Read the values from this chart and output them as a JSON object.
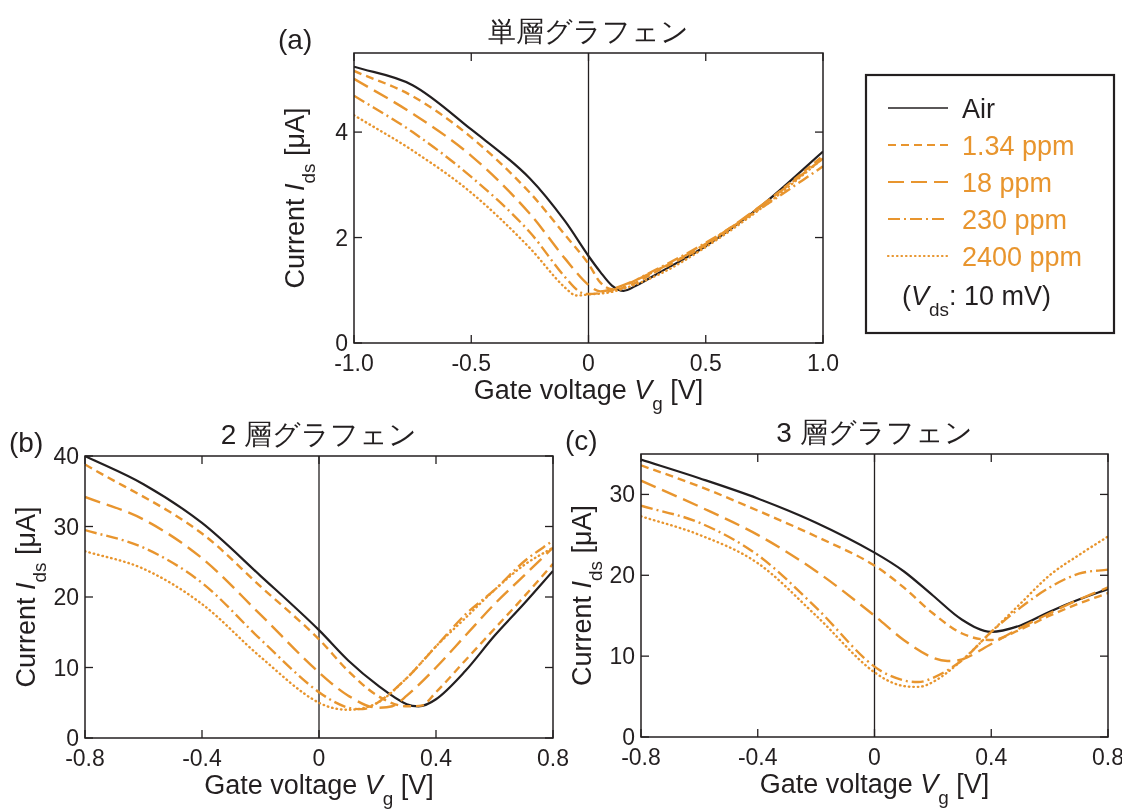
{
  "chart_data": [
    {
      "type": "line",
      "title": "単層グラフェン",
      "xlabel": "Gate voltage V$_{g}$ [V]",
      "ylabel": "Current I$_{ds}$ [μA]",
      "xlim": [
        -1,
        1
      ],
      "ylim": [
        0,
        5.5
      ],
      "xticks": [
        {
          "value": -1,
          "label": "-1.0"
        },
        -0.5,
        0,
        0.5,
        {
          "value": 1,
          "label": "1.0"
        }
      ],
      "yticks": [
        0,
        2,
        4
      ],
      "legend": "right",
      "annotations": [
        "(a)",
        "(V$_{ds}$: 10 mV)"
      ],
      "ref_lines": [
        {
          "axis": "x",
          "value": 0,
          "color": "#231f20"
        }
      ],
      "series": [
        {
          "name": "Air",
          "color": "#231f20",
          "line_style": "solid",
          "x": [
            -1,
            -0.75,
            -0.5,
            -0.25,
            -0.1,
            0,
            0.05,
            0.1,
            0.15,
            0.2,
            0.3,
            0.5,
            0.75,
            1
          ],
          "values": [
            5.24,
            4.89,
            4.05,
            3.12,
            2.31,
            1.65,
            1.35,
            1.09,
            0.99,
            1.08,
            1.33,
            1.84,
            2.65,
            3.63
          ]
        },
        {
          "name": "1.34 ppm",
          "color": "#e8952e",
          "line_style": "dashed",
          "x": [
            -1,
            -0.75,
            -0.5,
            -0.25,
            -0.1,
            0,
            0.05,
            0.1,
            0.15,
            0.3,
            0.5,
            0.75,
            1
          ],
          "values": [
            5.16,
            4.68,
            3.9,
            2.85,
            2.05,
            1.5,
            1.15,
            1.02,
            1.05,
            1.38,
            1.86,
            2.65,
            3.55
          ]
        },
        {
          "name": "18 ppm",
          "color": "#e8952e",
          "line_style": "longdash",
          "x": [
            -1,
            -0.75,
            -0.5,
            -0.25,
            -0.1,
            0,
            0.05,
            0.1,
            0.3,
            0.5,
            0.75,
            1
          ],
          "values": [
            5.01,
            4.35,
            3.55,
            2.45,
            1.6,
            1.1,
            0.98,
            1.02,
            1.4,
            1.88,
            2.65,
            3.5
          ]
        },
        {
          "name": "230 ppm",
          "color": "#e8952e",
          "line_style": "dashdot",
          "x": [
            -1,
            -0.75,
            -0.5,
            -0.25,
            -0.1,
            -0.03,
            0,
            0.1,
            0.3,
            0.5,
            0.75,
            1
          ],
          "values": [
            4.69,
            4.0,
            3.15,
            2.1,
            1.25,
            0.95,
            0.93,
            1.0,
            1.42,
            1.9,
            2.6,
            3.35
          ]
        },
        {
          "name": "2400 ppm",
          "color": "#e8952e",
          "line_style": "dotted",
          "x": [
            -1,
            -0.75,
            -0.5,
            -0.25,
            -0.1,
            -0.05,
            0,
            0.1,
            0.3,
            0.5,
            0.75,
            1
          ],
          "values": [
            4.32,
            3.65,
            2.85,
            1.8,
            1.05,
            0.9,
            0.92,
            0.97,
            1.3,
            1.82,
            2.6,
            3.5
          ]
        }
      ]
    },
    {
      "type": "line",
      "title": "2 層グラフェン",
      "xlabel": "Gate voltage V$_{g}$ [V]",
      "ylabel": "Current I$_{ds}$ [μA]",
      "xlim": [
        -0.8,
        0.8
      ],
      "ylim": [
        0,
        40
      ],
      "xticks": [
        -0.8,
        -0.4,
        0,
        0.4,
        0.8
      ],
      "yticks": [
        0,
        10,
        20,
        30,
        40
      ],
      "annotations": [
        "(b)"
      ],
      "ref_lines": [
        {
          "axis": "x",
          "value": 0,
          "color": "#231f20"
        }
      ],
      "series": [
        {
          "color": "#231f20",
          "line_style": "solid",
          "x": [
            -0.8,
            -0.6,
            -0.4,
            -0.2,
            0,
            0.1,
            0.2,
            0.3,
            0.34,
            0.4,
            0.5,
            0.6,
            0.7,
            0.8
          ],
          "values": [
            40,
            36,
            30.5,
            23,
            15.3,
            11,
            7.5,
            4.8,
            4.5,
            5.5,
            9.5,
            14.5,
            19,
            23.7
          ]
        },
        {
          "color": "#e8952e",
          "line_style": "dashed",
          "x": [
            -0.8,
            -0.4,
            -0.2,
            0,
            0.1,
            0.2,
            0.3,
            0.35,
            0.4,
            0.5,
            0.6,
            0.7,
            0.8
          ],
          "values": [
            38.8,
            29,
            21.5,
            14,
            9.5,
            6,
            4.5,
            4.6,
            6.5,
            11,
            15.5,
            20,
            24.7
          ]
        },
        {
          "color": "#e8952e",
          "line_style": "longdash",
          "x": [
            -0.8,
            -0.6,
            -0.4,
            -0.2,
            0,
            0.1,
            0.2,
            0.25,
            0.3,
            0.4,
            0.5,
            0.6,
            0.7,
            0.8
          ],
          "values": [
            34.2,
            31,
            25.5,
            17.5,
            9.3,
            6,
            4.3,
            4.5,
            6,
            10,
            14.5,
            19,
            23,
            27
          ]
        },
        {
          "color": "#e8952e",
          "line_style": "dashdot",
          "x": [
            -0.8,
            -0.6,
            -0.4,
            -0.2,
            0,
            0.1,
            0.15,
            0.2,
            0.3,
            0.4,
            0.5,
            0.6,
            0.7,
            0.8
          ],
          "values": [
            29.5,
            27,
            22,
            14,
            6.5,
            4.3,
            4.1,
            5,
            8.5,
            13,
            17.5,
            21,
            25,
            28
          ]
        },
        {
          "color": "#e8952e",
          "line_style": "dotted",
          "x": [
            -0.8,
            -0.6,
            -0.4,
            -0.2,
            0,
            0.1,
            0.2,
            0.3,
            0.4,
            0.5,
            0.6,
            0.7,
            0.8
          ],
          "values": [
            26.5,
            24,
            19,
            11.5,
            5,
            4,
            5,
            8.5,
            13,
            17,
            21,
            24.5,
            27
          ]
        }
      ]
    },
    {
      "type": "line",
      "title": "3 層グラフェン",
      "xlabel": "Gate voltage V$_{g}$ [V]",
      "ylabel": "Current I$_{ds}$ [μA]",
      "xlim": [
        -0.8,
        0.8
      ],
      "ylim": [
        0,
        35
      ],
      "xticks": [
        -0.8,
        -0.4,
        0,
        0.4,
        0.8
      ],
      "yticks": [
        0,
        10,
        20,
        30
      ],
      "annotations": [
        "(c)"
      ],
      "ref_lines": [
        {
          "axis": "x",
          "value": 0,
          "color": "#231f20"
        }
      ],
      "series": [
        {
          "color": "#231f20",
          "line_style": "solid",
          "x": [
            -0.8,
            -0.6,
            -0.4,
            -0.2,
            0,
            0.1,
            0.2,
            0.3,
            0.4,
            0.5,
            0.6,
            0.7,
            0.8
          ],
          "values": [
            34.3,
            32,
            29.5,
            26.5,
            22.8,
            20.5,
            17.5,
            14.5,
            13,
            13.8,
            15.5,
            17,
            18.3
          ]
        },
        {
          "color": "#e8952e",
          "line_style": "dashed",
          "x": [
            -0.8,
            -0.6,
            -0.4,
            -0.2,
            0,
            0.1,
            0.2,
            0.3,
            0.4,
            0.5,
            0.6,
            0.7,
            0.8
          ],
          "values": [
            33.6,
            31,
            28,
            24.8,
            21.2,
            18.5,
            15.3,
            12.8,
            12,
            13.3,
            15,
            16.5,
            17.8
          ]
        },
        {
          "color": "#e8952e",
          "line_style": "longdash",
          "x": [
            -0.8,
            -0.6,
            -0.4,
            -0.2,
            0,
            0.1,
            0.2,
            0.25,
            0.3,
            0.4,
            0.5,
            0.6,
            0.7,
            0.8
          ],
          "values": [
            31.7,
            28.5,
            25,
            20.5,
            15,
            12,
            9.8,
            9.4,
            9.6,
            11.5,
            13.5,
            15.3,
            17,
            18.5
          ]
        },
        {
          "color": "#e8952e",
          "line_style": "dashdot",
          "x": [
            -0.8,
            -0.6,
            -0.4,
            -0.2,
            0,
            0.1,
            0.15,
            0.2,
            0.3,
            0.4,
            0.5,
            0.6,
            0.7,
            0.8
          ],
          "values": [
            28.6,
            26.5,
            22.5,
            16,
            8.7,
            7,
            6.8,
            7.3,
            9.5,
            13,
            16,
            18.5,
            20.2,
            20.7
          ]
        },
        {
          "color": "#e8952e",
          "line_style": "dotted",
          "x": [
            -0.8,
            -0.6,
            -0.4,
            -0.2,
            0,
            0.1,
            0.15,
            0.2,
            0.3,
            0.4,
            0.5,
            0.6,
            0.7,
            0.8
          ],
          "values": [
            27.3,
            25,
            21.5,
            15,
            8,
            6.3,
            6.2,
            6.8,
            9.5,
            13,
            16.5,
            20,
            22.5,
            24.8
          ]
        }
      ]
    }
  ]
}
